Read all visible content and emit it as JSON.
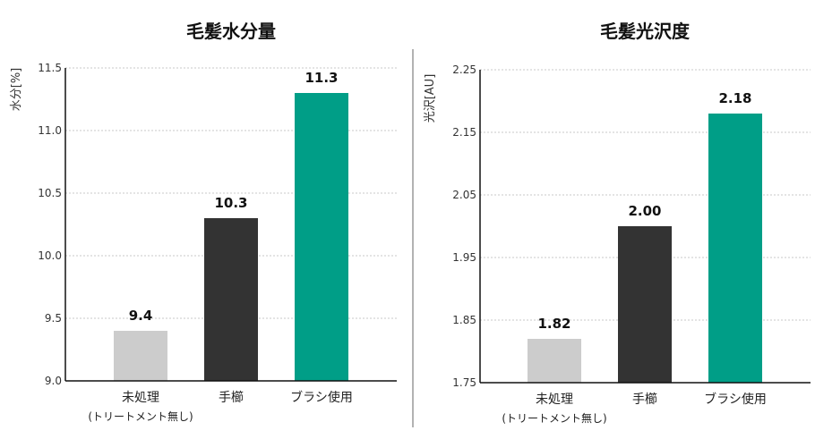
{
  "chart_data": [
    {
      "type": "bar",
      "title": "毛髪水分量",
      "ylabel": "水分[%]",
      "xlabel": "",
      "categories": [
        "未処理",
        "手櫛",
        "ブラシ使用"
      ],
      "category_sublabels": [
        "(トリートメント無し)",
        "",
        ""
      ],
      "values": [
        9.4,
        10.3,
        11.3
      ],
      "value_labels": [
        "9.4",
        "10.3",
        "11.3"
      ],
      "colors": [
        "#cccccc",
        "#333333",
        "#009e87"
      ],
      "ylim": [
        9.0,
        11.5
      ],
      "yticks": [
        "9.0",
        "9.5",
        "10.0",
        "10.5",
        "11.0",
        "11.5"
      ],
      "grid": "horizontal-dotted",
      "legend": "none"
    },
    {
      "type": "bar",
      "title": "毛髪光沢度",
      "ylabel": "光沢[AU]",
      "xlabel": "",
      "categories": [
        "未処理",
        "手櫛",
        "ブラシ使用"
      ],
      "category_sublabels": [
        "(トリートメント無し)",
        "",
        ""
      ],
      "values": [
        1.82,
        2.0,
        2.18
      ],
      "value_labels": [
        "1.82",
        "2.00",
        "2.18"
      ],
      "colors": [
        "#cccccc",
        "#333333",
        "#009e87"
      ],
      "ylim": [
        1.75,
        2.25
      ],
      "yticks": [
        "1.75",
        "1.85",
        "1.95",
        "2.05",
        "2.15",
        "2.25"
      ],
      "grid": "horizontal-dotted",
      "legend": "none"
    }
  ]
}
